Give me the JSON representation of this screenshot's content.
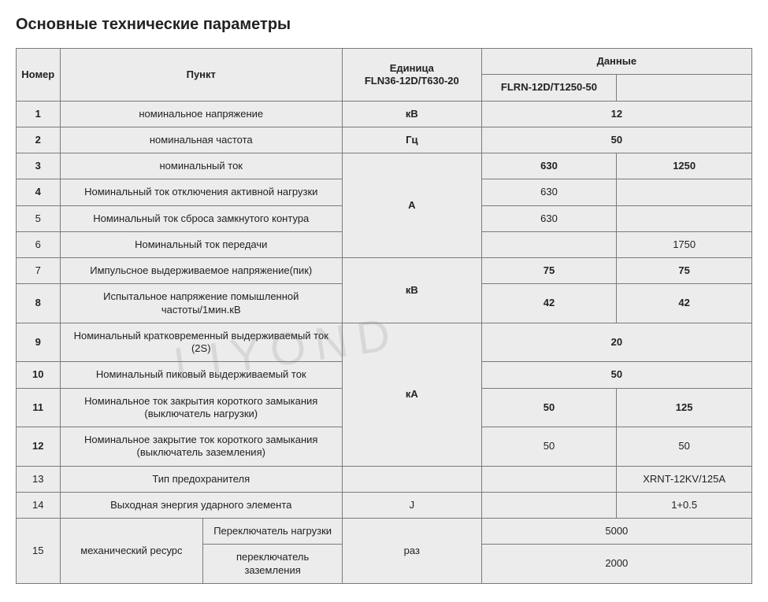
{
  "title": "Основные технические параметры",
  "watermark": "LIYOND",
  "header": {
    "num": "Номер",
    "item": "Пункт",
    "unit_line1": "Единица",
    "unit_line2": "FLN36-12D/T630-20",
    "data": "Данные",
    "data_sub1": "FLRN-12D/T1250-50",
    "data_sub2": ""
  },
  "rows": {
    "r1": {
      "num": "1",
      "item": "номинальное напряжение",
      "unit": "кВ",
      "d": "12"
    },
    "r2": {
      "num": "2",
      "item": "номинальная частота",
      "unit": "Гц",
      "d": "50"
    },
    "r3": {
      "num": "3",
      "item": "номинальный ток",
      "d1": "630",
      "d2": "1250"
    },
    "r4": {
      "num": "4",
      "item": "Номинальный ток отключения активной нагрузки",
      "d1": "630",
      "d2": ""
    },
    "r5": {
      "num": "5",
      "item": "Номинальный ток сброса замкнутого контура",
      "d1": "630",
      "d2": ""
    },
    "r6": {
      "num": "6",
      "item": "Номинальный ток передачи",
      "d1": "",
      "d2": "1750"
    },
    "unit_A": "А",
    "r7": {
      "num": "7",
      "item": "Импульсное выдерживаемое напряжение(пик)",
      "d1": "75",
      "d2": "75"
    },
    "r8": {
      "num": "8",
      "item": "Испытальное напряжение помышленной частоты/1мин.кВ",
      "d1": "42",
      "d2": "42"
    },
    "unit_kV": "кВ",
    "r9": {
      "num": "9",
      "item": "Номинальный кратковременный выдерживаемый ток (2S)",
      "d": "20"
    },
    "r10": {
      "num": "10",
      "item": "Номинальный пиковый выдерживаемый ток",
      "d": "50"
    },
    "r11": {
      "num": "11",
      "item": "Номинальное ток закрытия короткого замыкания (выключатель нагрузки)",
      "d1": "50",
      "d2": "125"
    },
    "r12": {
      "num": "12",
      "item": "Номинальное закрытие ток короткого замыкания (выключатель заземления)",
      "d1": "50",
      "d2": "50"
    },
    "unit_kA": "кА",
    "r13": {
      "num": "13",
      "item": "Тип предохранителя",
      "unit": "",
      "d1": "",
      "d2": "XRNT-12KV/125A"
    },
    "r14": {
      "num": "14",
      "item": "Выходная энергия ударного элемента",
      "unit": "J",
      "d1": "",
      "d2": "1+0.5"
    },
    "r15": {
      "num": "15",
      "item": "механический ресурс",
      "sub1": "Переключатель нагрузки",
      "sub2": "переключатель заземления",
      "unit": "раз",
      "d1": "5000",
      "d2": "2000"
    }
  },
  "style": {
    "bg": "#ececec",
    "border": "#7a7a7a",
    "page_bg": "#ffffff",
    "title_fontsize": 20,
    "cell_fontsize": 13
  }
}
